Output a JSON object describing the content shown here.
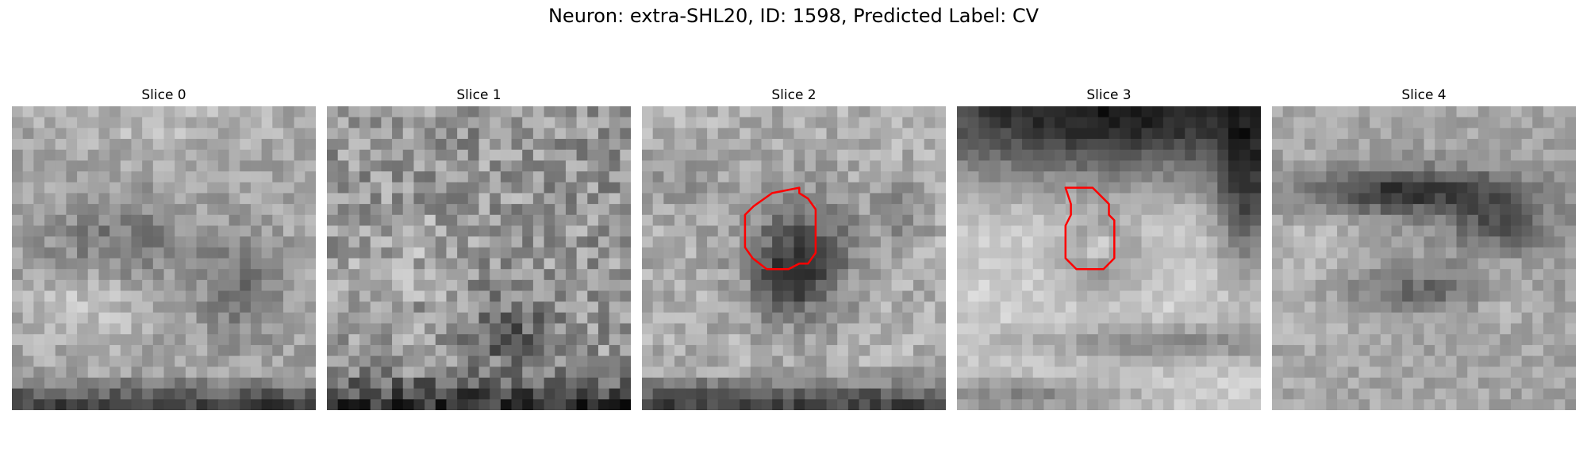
{
  "figure": {
    "title": "Neuron: extra-SHL20, ID: 1598, Predicted Label: CV"
  },
  "panels": [
    {
      "title": "Slice 0",
      "has_contour": false
    },
    {
      "title": "Slice 1",
      "has_contour": false
    },
    {
      "title": "Slice 2",
      "has_contour": true
    },
    {
      "title": "Slice 3",
      "has_contour": true
    },
    {
      "title": "Slice 4",
      "has_contour": false
    }
  ],
  "colors": {
    "contour": "#ff0000",
    "background": "#ffffff"
  },
  "colormap": "gray",
  "grid_size": 28
}
